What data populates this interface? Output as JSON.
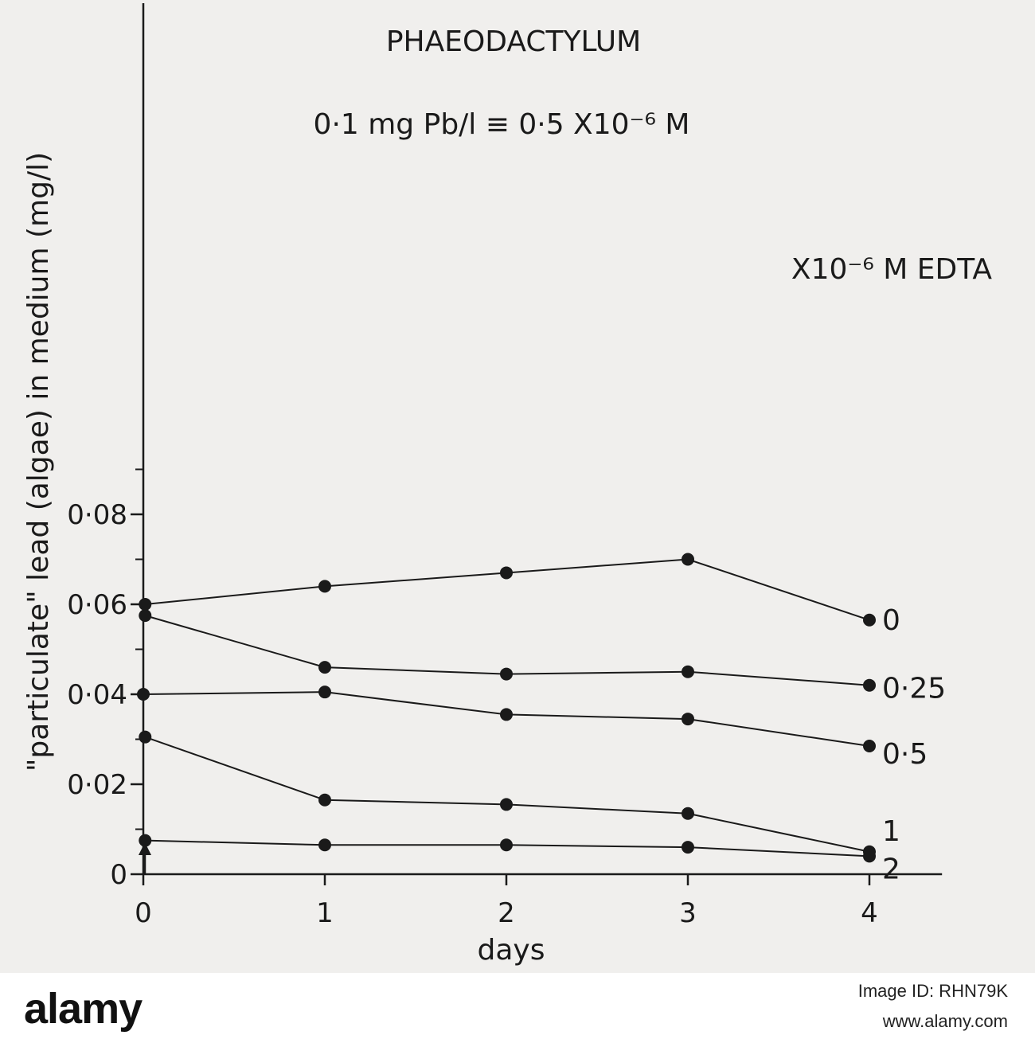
{
  "chart_data": {
    "type": "line",
    "title": "PHAEODACTYLUM",
    "subtitle": "0·1 mg Pb/l ≡ 0·5 X10⁻⁶ M",
    "xlabel": "days",
    "ylabel": "\"particulate\" lead (algae) in medium (mg/l)",
    "legend_title": "X10⁻⁶ M EDTA",
    "x": [
      0,
      1,
      2,
      3,
      4
    ],
    "x_tick_labels": [
      "0",
      "1",
      "2",
      "3",
      "4"
    ],
    "y_tick_labels": [
      "0",
      "0·02",
      "0·04",
      "0·06",
      "0·08"
    ],
    "y_ticks": [
      0,
      0.02,
      0.04,
      0.06,
      0.08
    ],
    "xlim": [
      0,
      4.4
    ],
    "ylim": [
      0,
      0.092
    ],
    "series": [
      {
        "name": "0",
        "values": [
          0.06,
          0.064,
          0.067,
          0.07,
          0.0565
        ]
      },
      {
        "name": "0·25",
        "values": [
          0.0575,
          0.046,
          0.0445,
          0.045,
          0.042
        ]
      },
      {
        "name": "0·5",
        "values": [
          0.04,
          0.0405,
          0.0355,
          0.0345,
          0.0285
        ]
      },
      {
        "name": "1",
        "values": [
          0.0305,
          0.0165,
          0.0155,
          0.0135,
          0.005
        ]
      },
      {
        "name": "2",
        "values": [
          0.0075,
          0.0065,
          0.0065,
          0.006,
          0.004
        ]
      }
    ],
    "first_point_offset_days": [
      0.1,
      0.1,
      0.0,
      0.1,
      0.1
    ],
    "start_marker": "triangle",
    "grid": false
  },
  "watermark": {
    "brand": "alamy",
    "image_id": "Image ID: RHN79K",
    "site": "www.alamy.com"
  }
}
